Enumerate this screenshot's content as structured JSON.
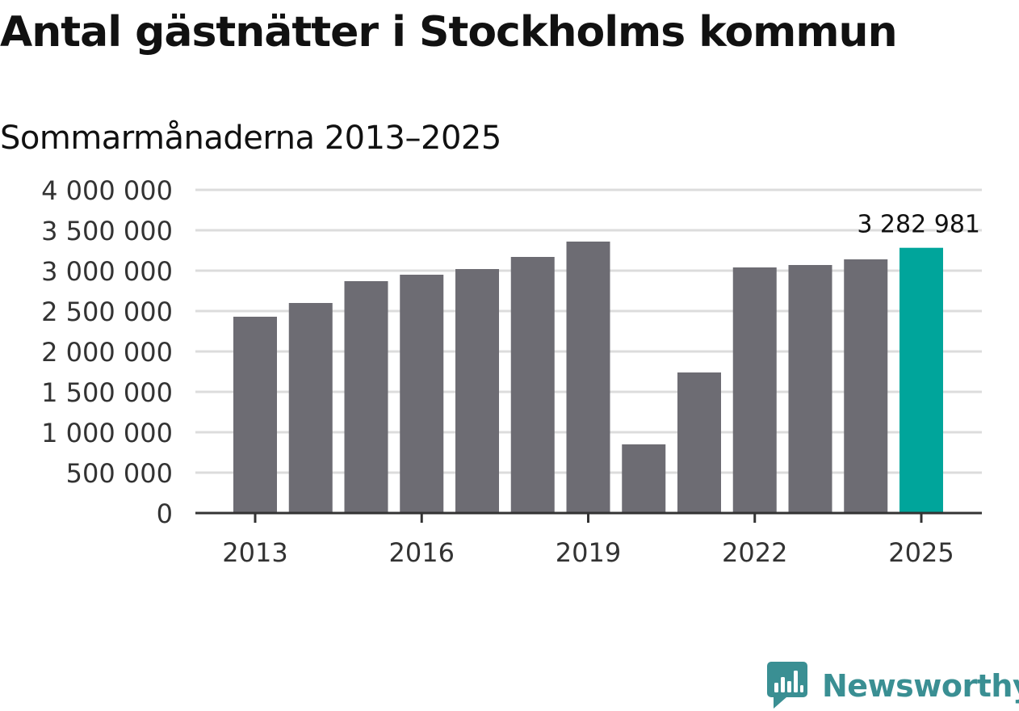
{
  "chart_data": {
    "type": "bar",
    "title": "Antal gästnätter i Stockholms kommun",
    "subtitle": "Sommarmånaderna 2013–2025",
    "xlabel": "",
    "ylabel": "",
    "categories": [
      "2013",
      "2014",
      "2015",
      "2016",
      "2017",
      "2018",
      "2019",
      "2020",
      "2021",
      "2022",
      "2023",
      "2024",
      "2025"
    ],
    "values": [
      2430000,
      2600000,
      2870000,
      2950000,
      3020000,
      3170000,
      3360000,
      850000,
      1740000,
      3040000,
      3070000,
      3140000,
      3282981
    ],
    "x_tick_labels": [
      "2013",
      "2016",
      "2019",
      "2022",
      "2025"
    ],
    "y_ticks": [
      0,
      500000,
      1000000,
      1500000,
      2000000,
      2500000,
      3000000,
      3500000,
      4000000
    ],
    "y_tick_labels": [
      "0",
      "500 000",
      "1 000 000",
      "1 500 000",
      "2 000 000",
      "2 500 000",
      "3 000 000",
      "3 500 000",
      "4 000 000"
    ],
    "ylim": [
      0,
      4000000
    ],
    "grid": true,
    "highlight": {
      "category": "2025",
      "label": "3 282 981"
    },
    "colors": {
      "bar": "#6d6c73",
      "highlight": "#00a59b",
      "grid": "#dcdcdc",
      "axis": "#333333",
      "tick_text": "#333333"
    }
  },
  "brand": {
    "name": "Newsworthy",
    "icon": "newsworthy-logo-icon",
    "color": "#3a8f93"
  }
}
